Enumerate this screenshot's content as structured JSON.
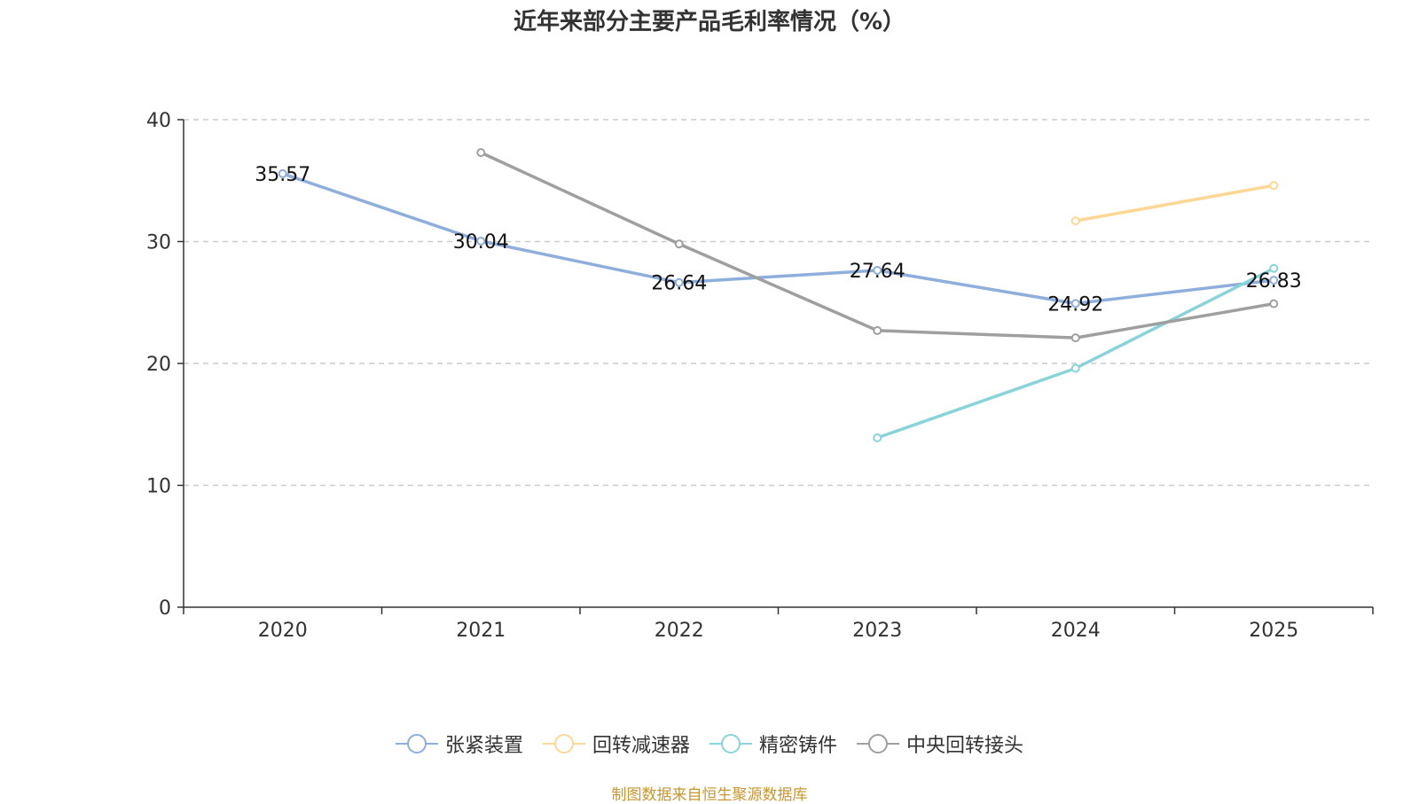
{
  "chart_data": {
    "type": "line",
    "title": "近年来部分主要产品毛利率情况（%）",
    "categories": [
      "2020",
      "2021",
      "2022",
      "2023",
      "2024",
      "2025"
    ],
    "ylim": [
      0,
      40
    ],
    "yticks": [
      0,
      10,
      20,
      30,
      40
    ],
    "grid": true,
    "legend_position": "bottom",
    "series": [
      {
        "name": "张紧装置",
        "color": "#8eaedb",
        "values": [
          35.57,
          30.04,
          26.64,
          27.64,
          24.92,
          26.83
        ],
        "labels": [
          "35.57",
          "30.04",
          "26.64",
          "27.64",
          "24.92",
          "26.83"
        ]
      },
      {
        "name": "回转减速器",
        "color": "#fdd895",
        "values": [
          null,
          null,
          null,
          null,
          31.7,
          34.6
        ],
        "labels": []
      },
      {
        "name": "精密铸件",
        "color": "#88d4d8",
        "values": [
          null,
          null,
          null,
          13.9,
          19.6,
          27.8
        ],
        "labels": []
      },
      {
        "name": "中央回转接头",
        "color": "#9f9f9f",
        "values": [
          null,
          37.3,
          29.8,
          22.7,
          22.1,
          24.9
        ],
        "labels": []
      }
    ]
  },
  "source_note": "制图数据来自恒生聚源数据库"
}
